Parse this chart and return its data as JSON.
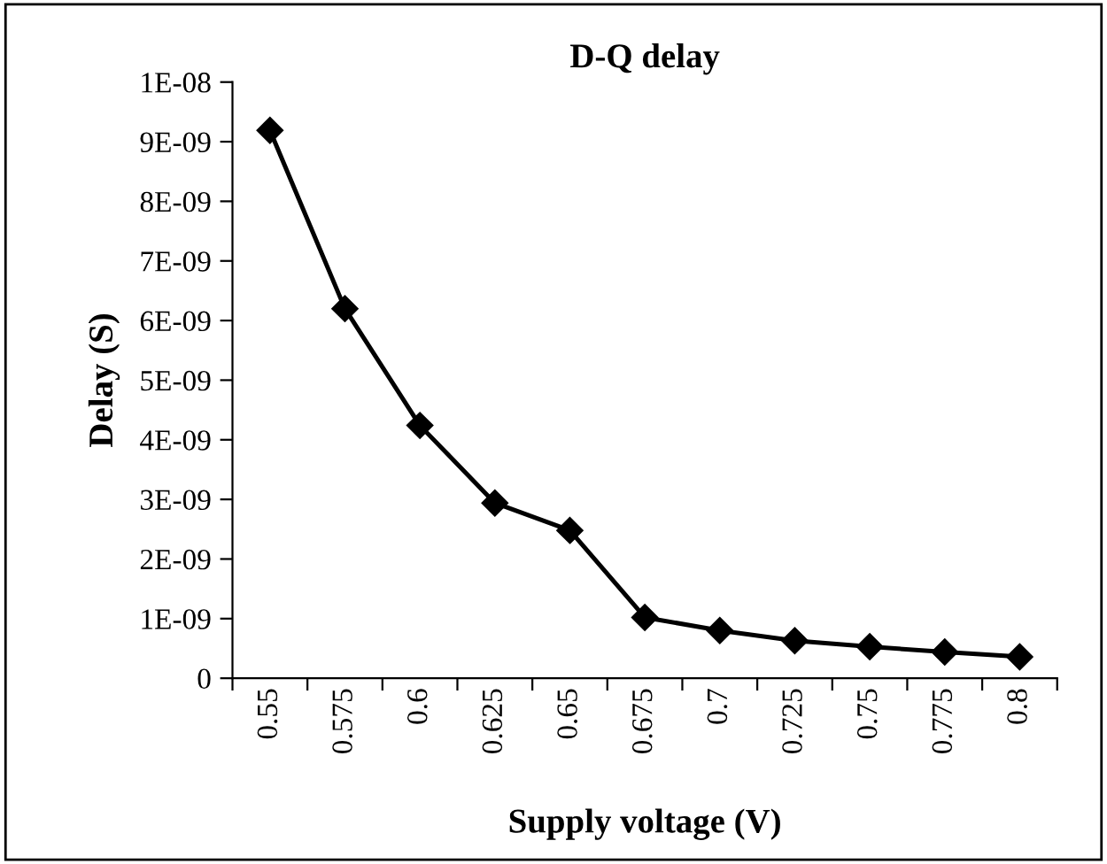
{
  "chart_data": {
    "type": "line",
    "title": "D-Q delay",
    "xlabel": "Supply voltage (V)",
    "ylabel": "Delay (S)",
    "categories": [
      "0.55",
      "0.575",
      "0.6",
      "0.625",
      "0.65",
      "0.675",
      "0.7",
      "0.725",
      "0.75",
      "0.775",
      "0.8"
    ],
    "series": [
      {
        "color": "#000000",
        "values": [
          9.19e-09,
          6.2e-09,
          4.24e-09,
          2.94e-09,
          2.48e-09,
          1.02e-09,
          8e-10,
          6.3e-10,
          5.3e-10,
          4.4e-10,
          3.6e-10
        ]
      }
    ],
    "ylim": [
      0,
      1e-08
    ],
    "yticks": [
      0,
      {
        "value": 1e-09,
        "label": "1E-09"
      },
      {
        "value": 2e-09,
        "label": "2E-09"
      },
      {
        "value": 3e-09,
        "label": "3E-09"
      },
      {
        "value": 4e-09,
        "label": "4E-09"
      },
      {
        "value": 5e-09,
        "label": "5E-09"
      },
      {
        "value": 6e-09,
        "label": "6E-09"
      },
      {
        "value": 7e-09,
        "label": "7E-09"
      },
      {
        "value": 8e-09,
        "label": "8E-09"
      },
      {
        "value": 9e-09,
        "label": "9E-09"
      },
      {
        "value": 1e-08,
        "label": "1E-08"
      }
    ],
    "grid": false,
    "legend": false,
    "marker": "diamond",
    "line_style": "solid"
  }
}
